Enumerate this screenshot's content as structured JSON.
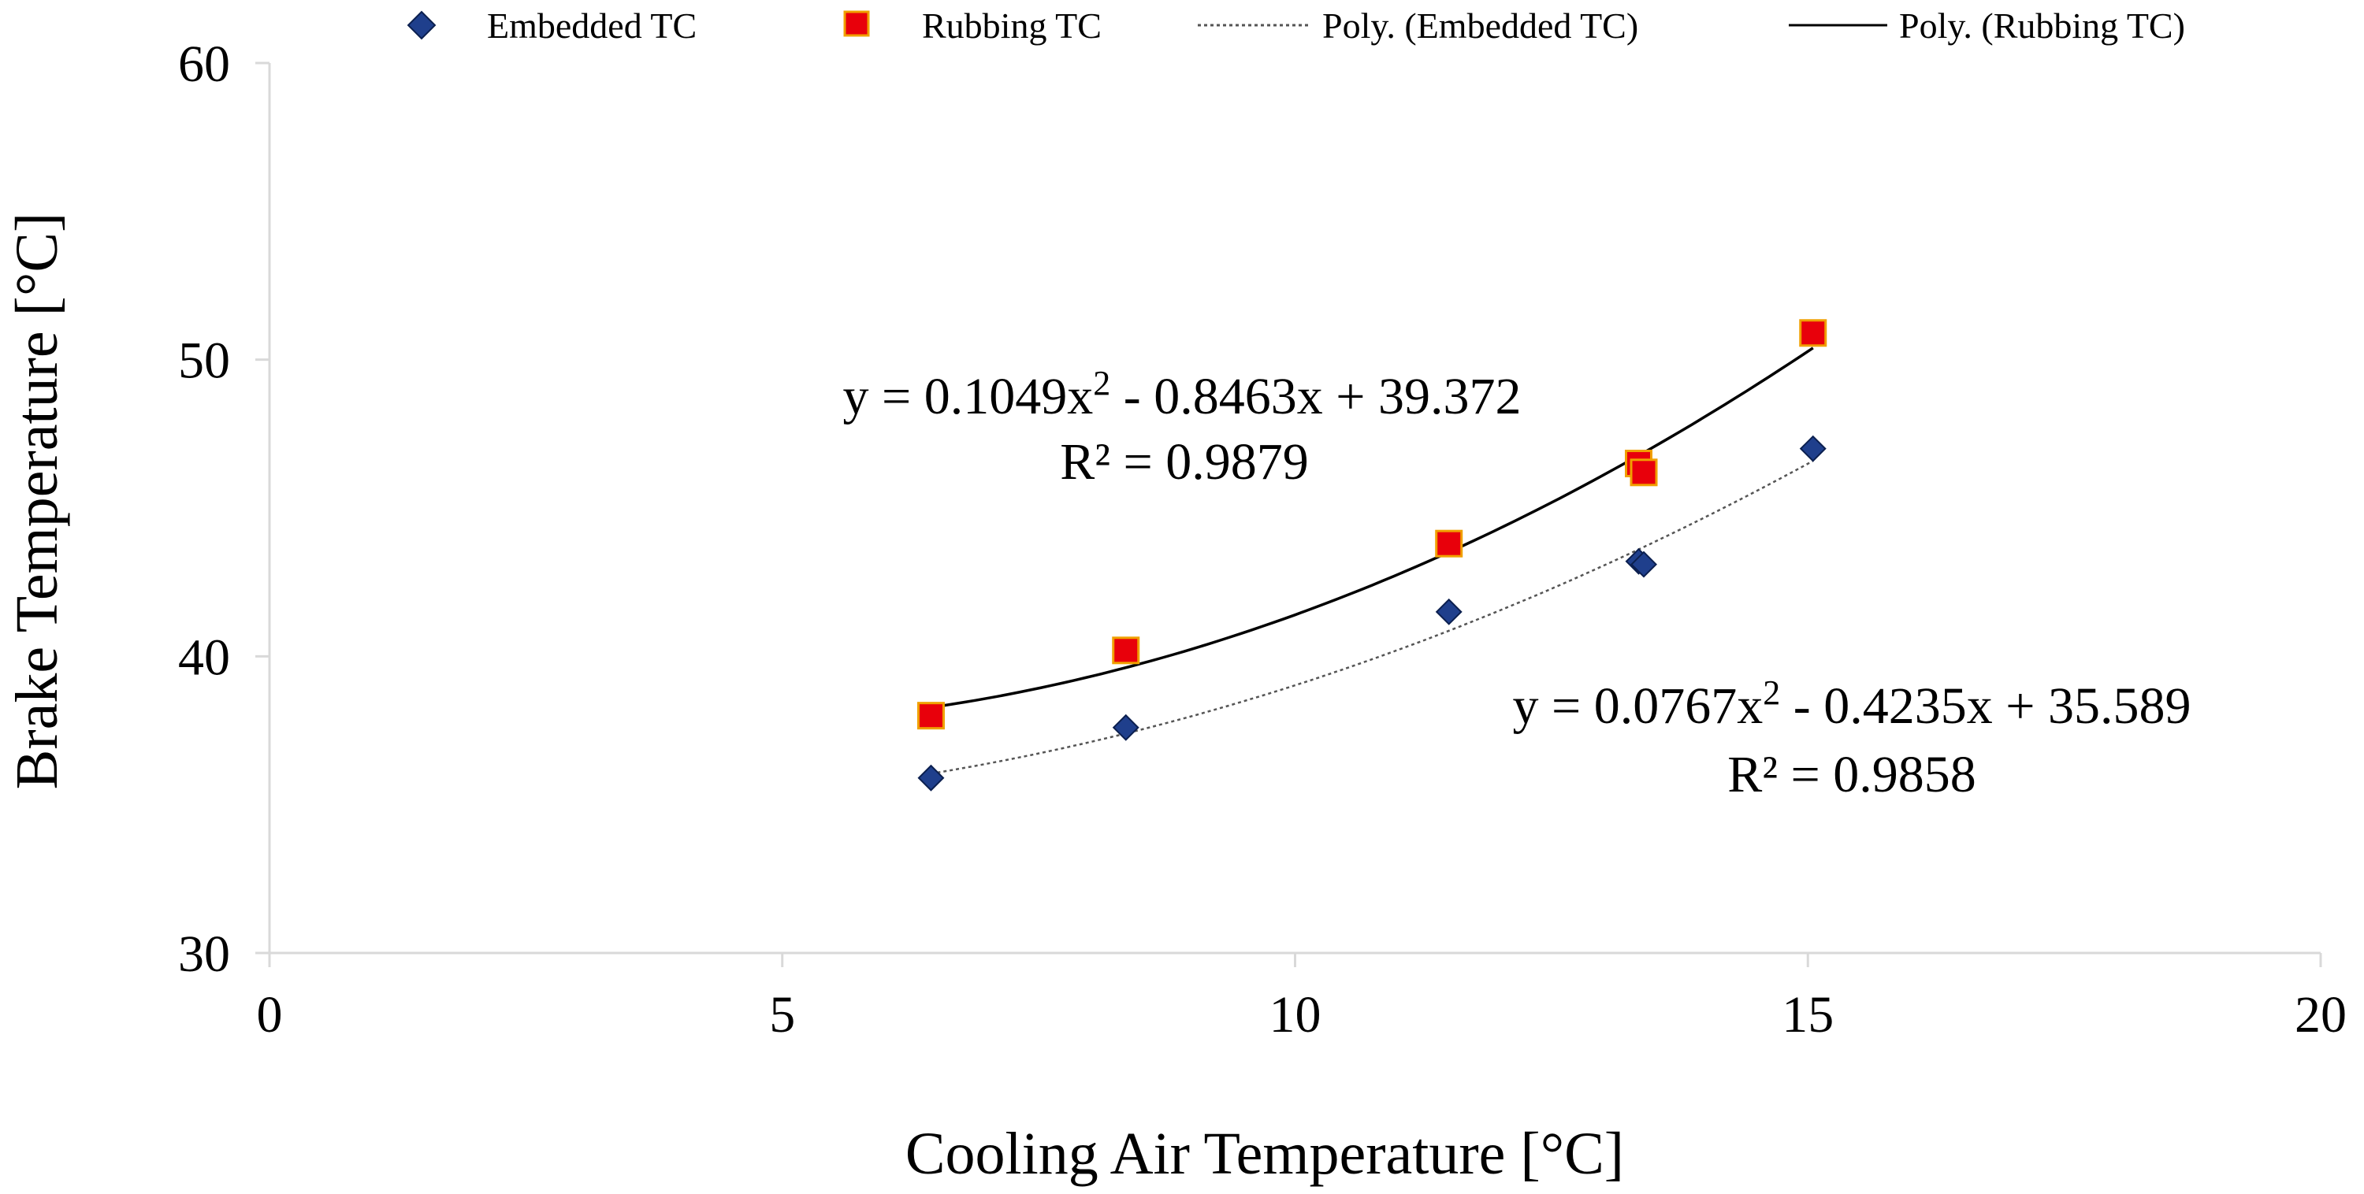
{
  "chart_data": {
    "type": "scatter",
    "title": "",
    "xlabel": "Cooling Air Temperature [°C]",
    "ylabel": "Brake Temperature [°C]",
    "xlim": [
      0,
      20
    ],
    "ylim": [
      30,
      60
    ],
    "x_ticks": [
      0,
      5,
      10,
      15,
      20
    ],
    "y_ticks": [
      30,
      40,
      50,
      60
    ],
    "x_tick_labels": [
      "0",
      "5",
      "10",
      "15",
      "20"
    ],
    "y_tick_labels": [
      "30",
      "40",
      "50",
      "60"
    ],
    "grid": false,
    "legend_position": "top",
    "series": [
      {
        "name": "Embedded TC",
        "marker": "diamond",
        "color": "#1F3F8C",
        "x": [
          6.45,
          8.35,
          11.5,
          13.35,
          13.4,
          15.05
        ],
        "y": [
          35.9,
          37.6,
          41.5,
          43.2,
          43.1,
          47.0
        ]
      },
      {
        "name": "Rubbing TC",
        "marker": "square",
        "color": "#E8000B",
        "x": [
          6.45,
          8.35,
          11.5,
          13.35,
          13.4,
          15.05
        ],
        "y": [
          38.0,
          40.2,
          43.8,
          46.5,
          46.2,
          50.9
        ]
      }
    ],
    "trendlines": [
      {
        "name": "Poly. (Embedded TC)",
        "style": "dotted",
        "color": "#555555",
        "coefficients": [
          0.0767,
          -0.4235,
          35.589
        ],
        "x_range": [
          6.45,
          15.05
        ],
        "equation": "y = 0.0767x",
        "equation_exp": "2",
        "equation_rest": " - 0.4235x + 35.589",
        "r_squared": "R² = 0.9858"
      },
      {
        "name": "Poly. (Rubbing TC)",
        "style": "solid",
        "color": "#000000",
        "coefficients": [
          0.1049,
          -0.8463,
          39.372
        ],
        "x_range": [
          6.45,
          15.05
        ],
        "equation": "y = 0.1049x",
        "equation_exp": "2",
        "equation_rest": " - 0.8463x + 39.372",
        "r_squared": "R² = 0.9879"
      }
    ]
  }
}
